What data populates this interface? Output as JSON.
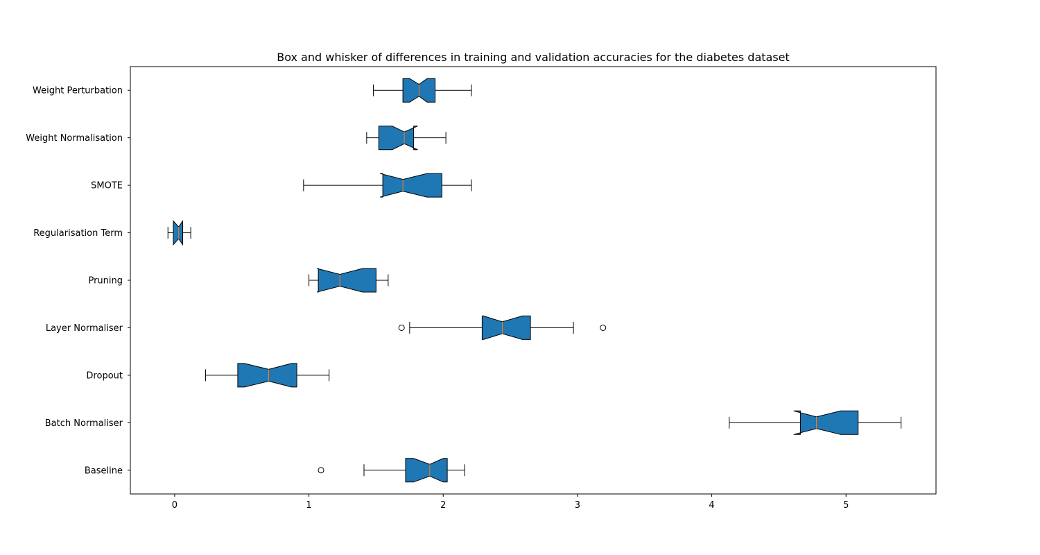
{
  "chart_data": {
    "type": "boxplot",
    "orientation": "horizontal",
    "notched": true,
    "title": "Box and whisker of differences in training and validation accuracies for the diabetes dataset",
    "xlabel": "",
    "ylabel": "",
    "xlim": [
      -0.33,
      5.67
    ],
    "xticks": [
      0,
      1,
      2,
      3,
      4,
      5
    ],
    "xtick_labels": [
      "0",
      "1",
      "2",
      "3",
      "4",
      "5"
    ],
    "grid": false,
    "colors": {
      "box_fill": "#1f77b4",
      "median": "#ff7f0e",
      "line": "#000000"
    },
    "series": [
      {
        "name": "Weight Perturbation",
        "whislo": 1.48,
        "q1": 1.7,
        "notchlo": 1.75,
        "med": 1.82,
        "notchhi": 1.88,
        "q3": 1.94,
        "whishi": 2.21,
        "fliers": []
      },
      {
        "name": "Weight Normalisation",
        "whislo": 1.43,
        "q1": 1.52,
        "notchlo": 1.62,
        "med": 1.71,
        "notchhi": 1.81,
        "q3": 1.78,
        "whishi": 2.02,
        "fliers": []
      },
      {
        "name": "SMOTE",
        "whislo": 0.96,
        "q1": 1.55,
        "notchlo": 1.53,
        "med": 1.7,
        "notchhi": 1.88,
        "q3": 1.99,
        "whishi": 2.21,
        "fliers": []
      },
      {
        "name": "Regularisation Term",
        "whislo": -0.05,
        "q1": -0.01,
        "notchlo": -0.01,
        "med": 0.03,
        "notchhi": 0.06,
        "q3": 0.06,
        "whishi": 0.12,
        "fliers": []
      },
      {
        "name": "Pruning",
        "whislo": 1.0,
        "q1": 1.07,
        "notchlo": 1.06,
        "med": 1.23,
        "notchhi": 1.4,
        "q3": 1.5,
        "whishi": 1.59,
        "fliers": []
      },
      {
        "name": "Layer Normaliser",
        "whislo": 1.75,
        "q1": 2.29,
        "notchlo": 2.3,
        "med": 2.44,
        "notchhi": 2.59,
        "q3": 2.65,
        "whishi": 2.97,
        "fliers": [
          1.69,
          3.19
        ]
      },
      {
        "name": "Dropout",
        "whislo": 0.23,
        "q1": 0.47,
        "notchlo": 0.52,
        "med": 0.7,
        "notchhi": 0.87,
        "q3": 0.91,
        "whishi": 1.15,
        "fliers": []
      },
      {
        "name": "Batch Normaliser",
        "whislo": 4.13,
        "q1": 4.66,
        "notchlo": 4.61,
        "med": 4.78,
        "notchhi": 4.96,
        "q3": 5.09,
        "whishi": 5.41,
        "fliers": []
      },
      {
        "name": "Baseline",
        "whislo": 1.41,
        "q1": 1.72,
        "notchlo": 1.78,
        "med": 1.9,
        "notchhi": 2.0,
        "q3": 2.03,
        "whishi": 2.16,
        "fliers": [
          1.09
        ]
      }
    ]
  }
}
